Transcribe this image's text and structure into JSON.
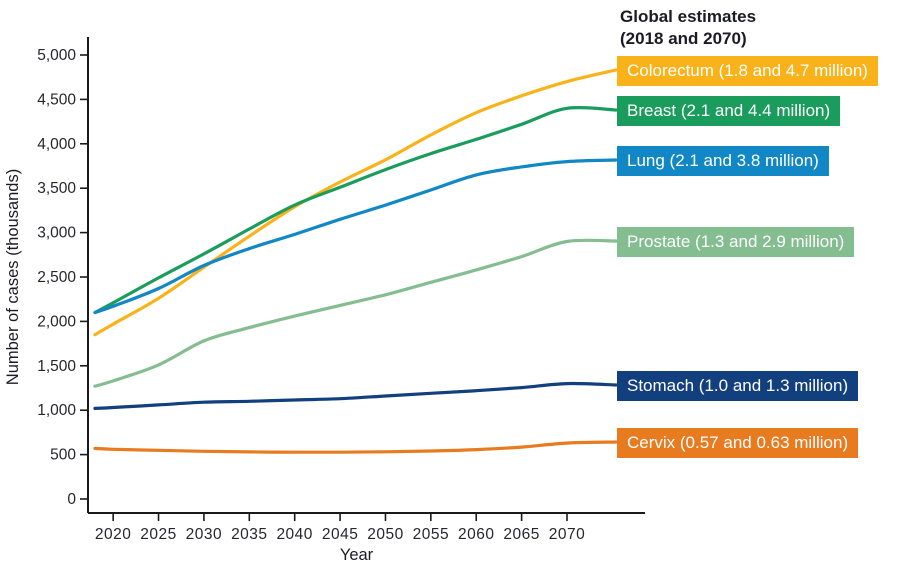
{
  "title": {
    "line1": "Global estimates",
    "line2": "(2018 and 2070)"
  },
  "y_axis": {
    "label": "Number of cases (thousands)",
    "tick_values": [
      0,
      500,
      1000,
      1500,
      2000,
      2500,
      3000,
      3500,
      4000,
      4500,
      5000
    ],
    "tick_labels": [
      "0",
      "500",
      "1,000",
      "1,500",
      "2,000",
      "2,500",
      "3,000",
      "3,500",
      "4,000",
      "4,500",
      "5,000"
    ]
  },
  "x_axis": {
    "label": "Year",
    "tick_values": [
      2020,
      2025,
      2030,
      2035,
      2040,
      2045,
      2050,
      2055,
      2060,
      2065,
      2070
    ],
    "tick_labels": [
      "2020",
      "2025",
      "2030",
      "2035",
      "2040",
      "2045",
      "2050",
      "2055",
      "2060",
      "2065",
      "2070"
    ]
  },
  "chart_data": {
    "type": "line",
    "title": "Global estimates (2018 and 2070)",
    "xlabel": "Year",
    "ylabel": "Number of cases (thousands)",
    "xlim": [
      2018,
      2070
    ],
    "ylim": [
      0,
      5000
    ],
    "grid": false,
    "legend_position": "right-inline-labels",
    "x": [
      2018,
      2020,
      2025,
      2030,
      2035,
      2040,
      2045,
      2050,
      2055,
      2060,
      2065,
      2070
    ],
    "series": [
      {
        "name": "Colorectum",
        "label": "Colorectum (1.8 and 4.7 million)",
        "color": "#F9B21A",
        "values": [
          1850,
          1970,
          2260,
          2610,
          2960,
          3290,
          3570,
          3820,
          4100,
          4350,
          4540,
          4700
        ]
      },
      {
        "name": "Breast",
        "label": "Breast (2.1 and 4.4 million)",
        "color": "#1A9D5C",
        "values": [
          2100,
          2210,
          2490,
          2760,
          3040,
          3310,
          3510,
          3710,
          3890,
          4050,
          4220,
          4400
        ]
      },
      {
        "name": "Lung",
        "label": "Lung (2.1 and 3.8 million)",
        "color": "#1187C6",
        "values": [
          2100,
          2170,
          2370,
          2630,
          2820,
          2980,
          3150,
          3310,
          3480,
          3650,
          3740,
          3800
        ]
      },
      {
        "name": "Prostate",
        "label": "Prostate (1.3 and 2.9 million)",
        "color": "#83BD90",
        "values": [
          1270,
          1330,
          1510,
          1780,
          1930,
          2060,
          2180,
          2300,
          2440,
          2580,
          2730,
          2900
        ]
      },
      {
        "name": "Stomach",
        "label": "Stomach (1.0 and 1.3 million)",
        "color": "#123F7E",
        "values": [
          1020,
          1030,
          1060,
          1090,
          1100,
          1115,
          1130,
          1160,
          1190,
          1220,
          1255,
          1300
        ]
      },
      {
        "name": "Cervix",
        "label": "Cervix (0.57 and 0.63 million)",
        "color": "#E87A20",
        "values": [
          570,
          560,
          548,
          537,
          530,
          527,
          527,
          532,
          541,
          556,
          584,
          630
        ]
      }
    ]
  }
}
